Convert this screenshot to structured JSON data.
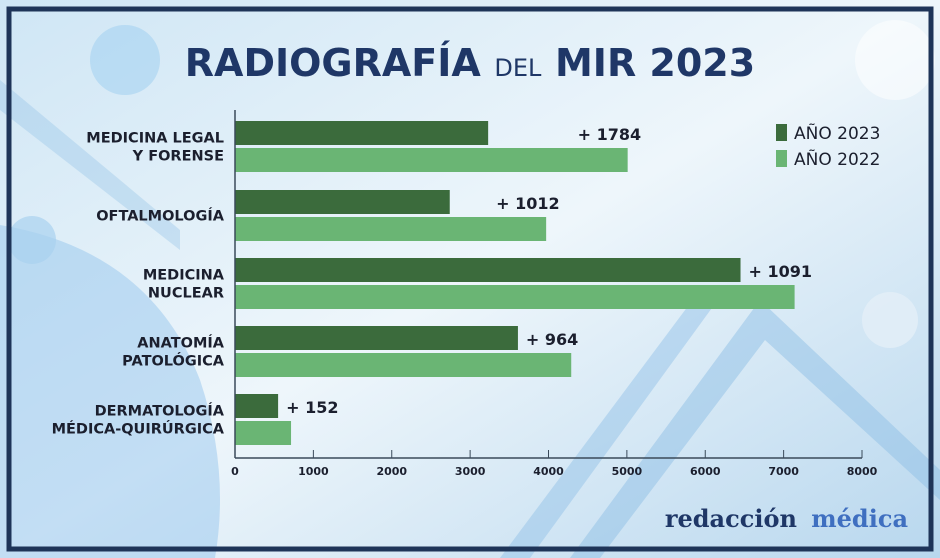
{
  "title": {
    "part1": "RADIOGRAFÍA",
    "part2": "DEL",
    "part3": "MIR 2023"
  },
  "logo": {
    "word1": "redacción",
    "word2": "médica"
  },
  "colors": {
    "series_2023": "#3b6b3c",
    "series_2022": "#6ab574",
    "title": "#1f3767",
    "frame": "#1e3458",
    "logo_dark": "#1f3767",
    "logo_light": "#3f6fc0"
  },
  "chart_data": {
    "type": "bar",
    "orientation": "horizontal",
    "title": "RADIOGRAFÍA DEL MIR 2023",
    "categories": [
      "MEDICINA LEGAL\nY FORENSE",
      "OFTALMOLOGÍA",
      "MEDICINA\nNUCLEAR",
      "ANATOMÍA\nPATOLÓGICA",
      "DERMATOLOGÍA\nMÉDICA-QUIRÚRGICA"
    ],
    "series": [
      {
        "name": "AÑO 2023",
        "values": [
          3230,
          2740,
          6450,
          3610,
          550
        ]
      },
      {
        "name": "AÑO 2022",
        "values": [
          5010,
          3970,
          7140,
          4290,
          715
        ]
      }
    ],
    "annotations": [
      "+ 1784",
      "+ 1012",
      "+ 1091",
      "+ 964",
      "+ 152"
    ],
    "xlim": [
      0,
      8000
    ],
    "xticks": [
      "0",
      "1000",
      "2000",
      "3000",
      "4000",
      "5000",
      "6000",
      "7000",
      "8000"
    ],
    "grid": false,
    "legend_position": "top-right"
  }
}
